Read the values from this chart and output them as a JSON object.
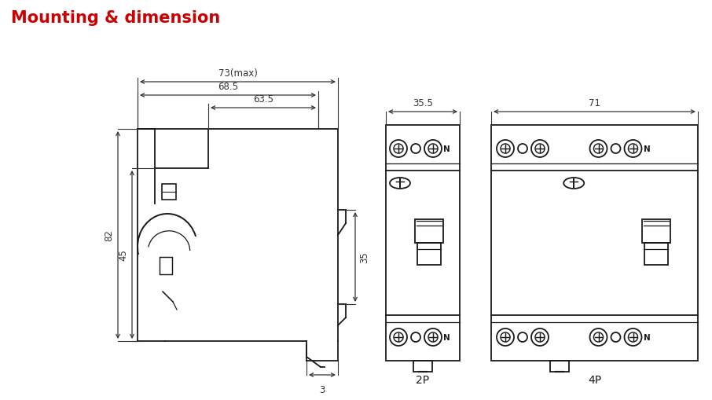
{
  "title": "Mounting & dimension",
  "title_color": "#cc0000",
  "title_fontsize": 15,
  "bg_color": "#ffffff",
  "line_color": "#1a1a1a",
  "line_width": 1.3,
  "dim_color": "#333333",
  "dim_fontsize": 8.5,
  "label_2p": "2P",
  "label_4p": "4P",
  "dims": {
    "d73": "73(max)",
    "d68": "68.5",
    "d63": "63.5",
    "d82": "82",
    "d45": "45",
    "d35": "35",
    "d3": "3",
    "d35_5": "35.5",
    "d71": "71"
  }
}
